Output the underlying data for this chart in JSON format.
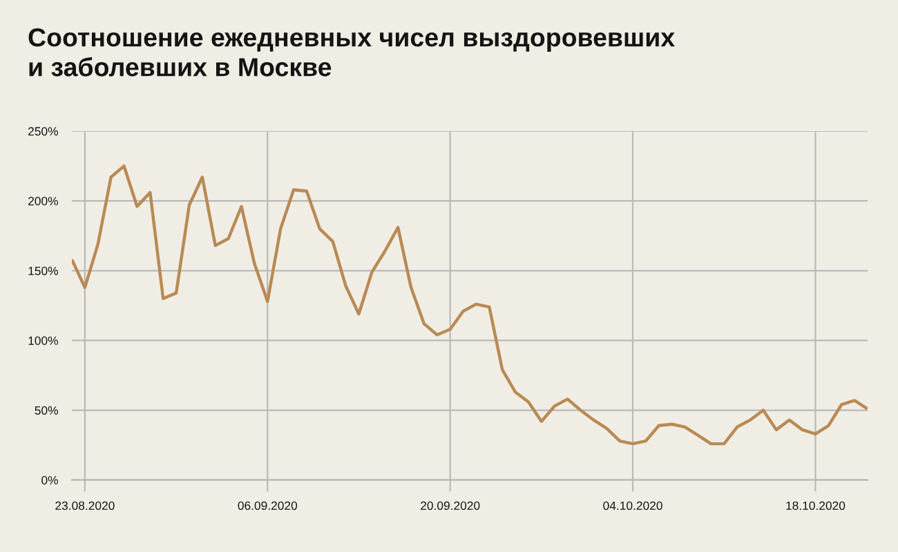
{
  "chart_data": {
    "type": "line",
    "title": "Соотношение ежедневных чисел выздоровевших\nи заболевших в Москве",
    "x": [
      "2020-08-22",
      "2020-08-23",
      "2020-08-24",
      "2020-08-25",
      "2020-08-26",
      "2020-08-27",
      "2020-08-28",
      "2020-08-29",
      "2020-08-30",
      "2020-08-31",
      "2020-09-01",
      "2020-09-02",
      "2020-09-03",
      "2020-09-04",
      "2020-09-05",
      "2020-09-06",
      "2020-09-07",
      "2020-09-08",
      "2020-09-09",
      "2020-09-10",
      "2020-09-11",
      "2020-09-12",
      "2020-09-13",
      "2020-09-14",
      "2020-09-15",
      "2020-09-16",
      "2020-09-17",
      "2020-09-18",
      "2020-09-19",
      "2020-09-20",
      "2020-09-21",
      "2020-09-22",
      "2020-09-23",
      "2020-09-24",
      "2020-09-25",
      "2020-09-26",
      "2020-09-27",
      "2020-09-28",
      "2020-09-29",
      "2020-09-30",
      "2020-10-01",
      "2020-10-02",
      "2020-10-03",
      "2020-10-04",
      "2020-10-05",
      "2020-10-06",
      "2020-10-07",
      "2020-10-08",
      "2020-10-09",
      "2020-10-10",
      "2020-10-11",
      "2020-10-12",
      "2020-10-13",
      "2020-10-14",
      "2020-10-15",
      "2020-10-16",
      "2020-10-17",
      "2020-10-18",
      "2020-10-19",
      "2020-10-20",
      "2020-10-21",
      "2020-10-22"
    ],
    "series": [
      {
        "color": "#b98a55",
        "values": [
          158,
          138,
          169,
          217,
          225,
          196,
          206,
          130,
          134,
          197,
          217,
          168,
          173,
          196,
          155,
          128,
          180,
          208,
          207,
          180,
          171,
          139,
          119,
          149,
          164,
          181,
          138,
          112,
          104,
          108,
          121,
          126,
          124,
          79,
          63,
          56,
          42,
          53,
          58,
          50,
          43,
          37,
          28,
          26,
          28,
          39,
          40,
          38,
          32,
          26,
          26,
          38,
          43,
          50,
          36,
          43,
          36,
          33,
          39,
          54,
          57,
          51
        ]
      }
    ],
    "xlim": [
      "2020-08-22",
      "2020-10-22"
    ],
    "xticks": [
      {
        "value": "2020-08-23",
        "label": "23.08.2020"
      },
      {
        "value": "2020-09-06",
        "label": "06.09.2020"
      },
      {
        "value": "2020-09-20",
        "label": "20.09.2020"
      },
      {
        "value": "2020-10-04",
        "label": "04.10.2020"
      },
      {
        "value": "2020-10-18",
        "label": "18.10.2020"
      }
    ],
    "ylim": [
      0,
      250
    ],
    "yticks": [
      {
        "value": 0,
        "label": "0%"
      },
      {
        "value": 50,
        "label": "50%"
      },
      {
        "value": 100,
        "label": "100%"
      },
      {
        "value": 150,
        "label": "150%"
      },
      {
        "value": 200,
        "label": "200%"
      },
      {
        "value": 250,
        "label": "250%"
      }
    ],
    "grid": true,
    "line_style": "solid"
  }
}
